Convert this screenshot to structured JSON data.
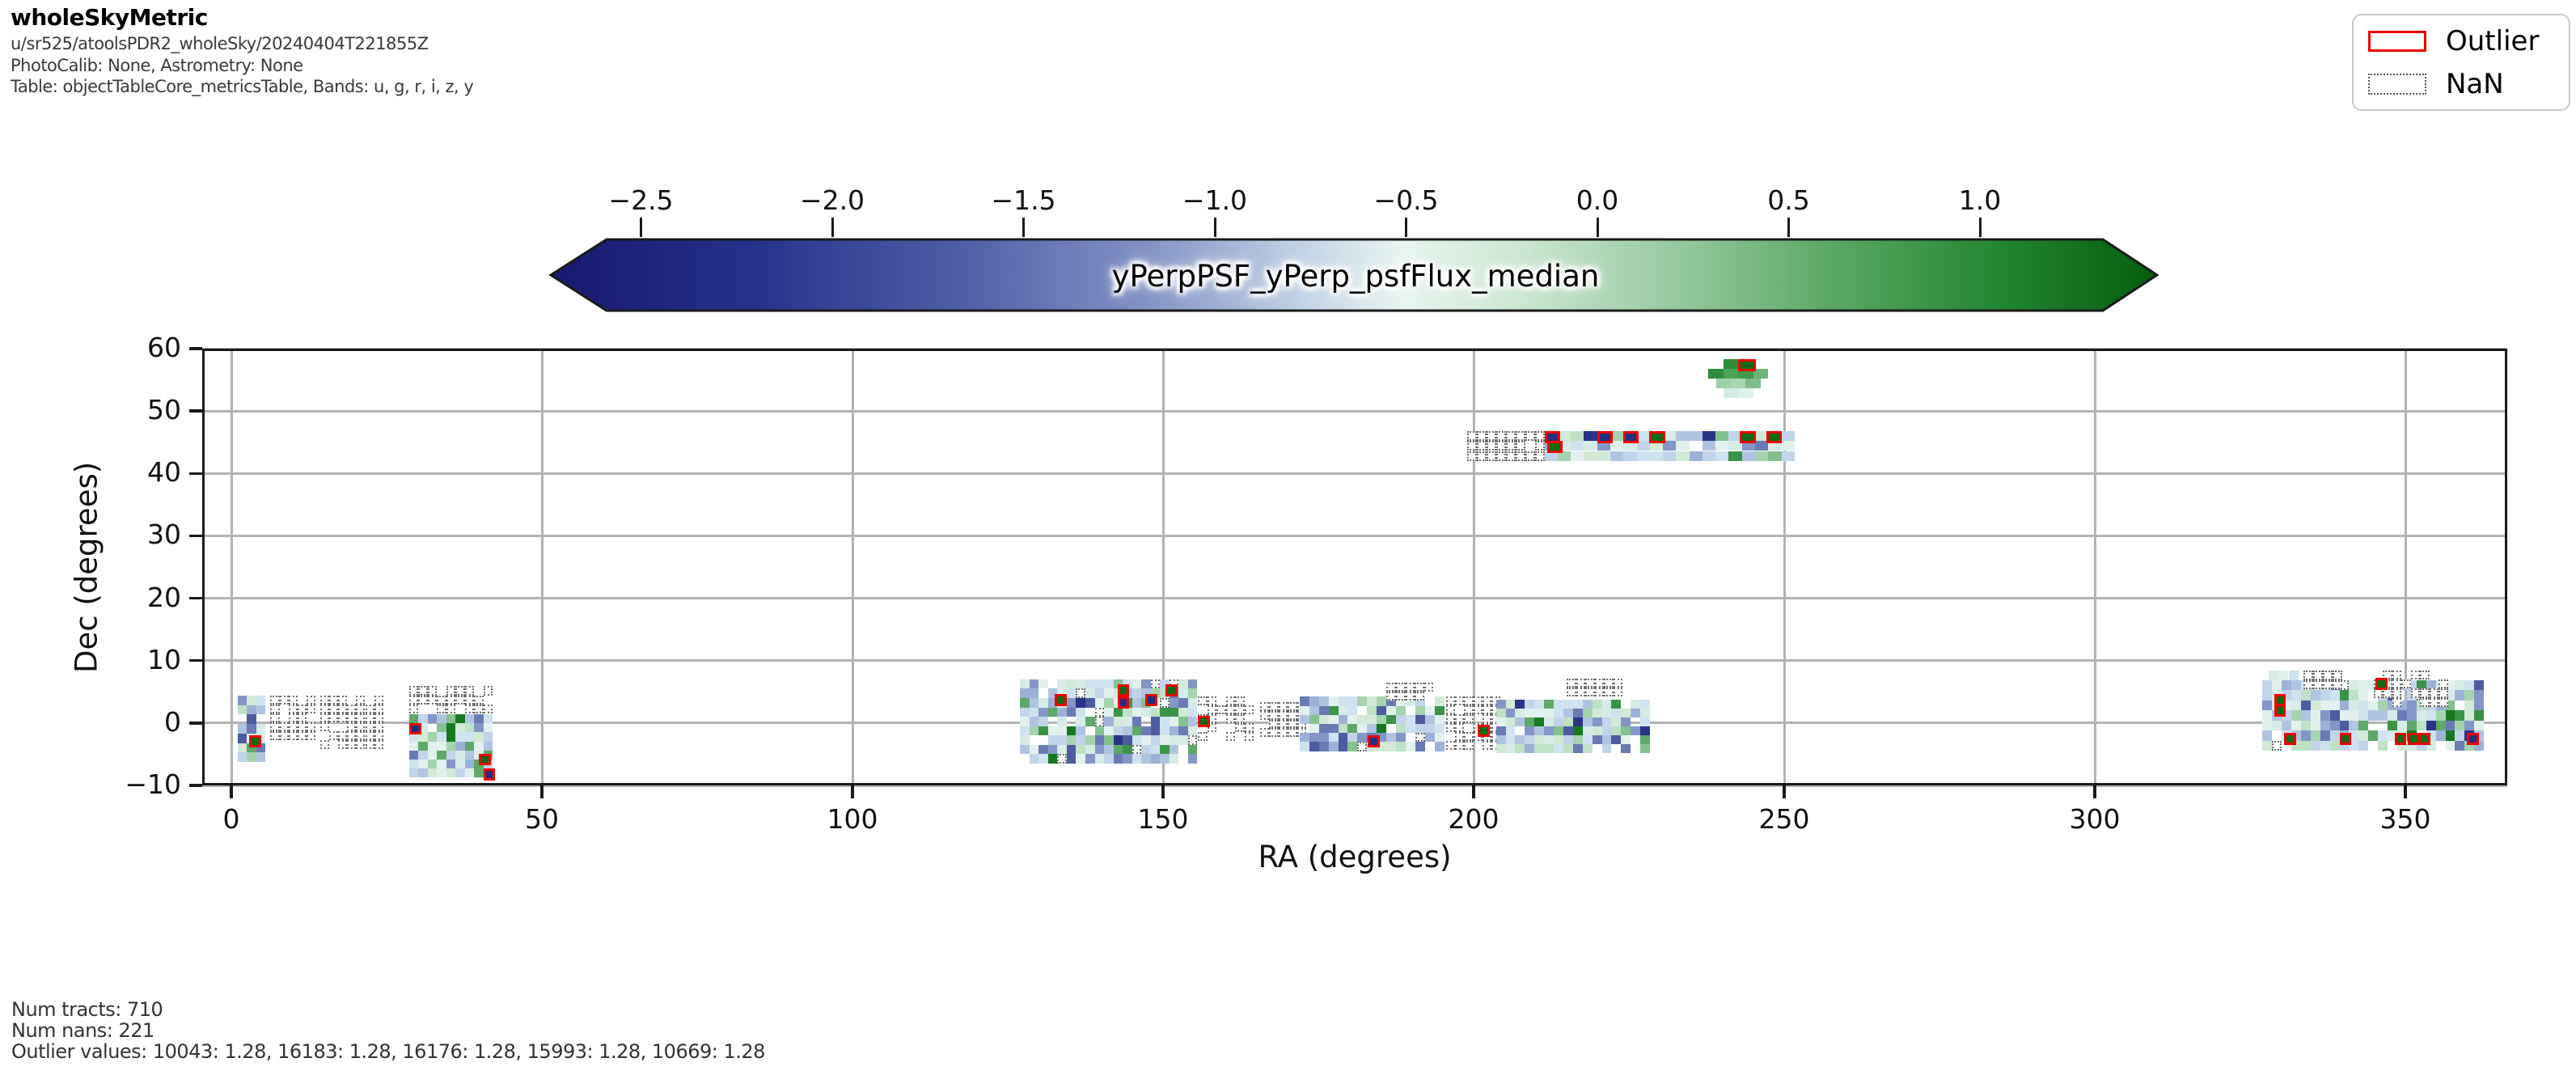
{
  "header": {
    "title": "wholeSkyMetric",
    "run": "u/sr525/atoolsPDR2_wholeSky/20240404T221855Z",
    "calib": "PhotoCalib: None, Astrometry: None",
    "table": "Table: objectTableCore_metricsTable, Bands: u, g, r, i, z, y"
  },
  "legend": {
    "outlier_label": "Outlier",
    "nan_label": "NaN",
    "outlier_color": "#f00000",
    "nan_border_color": "#555555"
  },
  "footer": {
    "line1": "Num tracts: 710",
    "line2": "Num nans: 221",
    "line3": "Outlier values: 10043: 1.28, 16183: 1.28, 16176: 1.28, 15993: 1.28, 10669: 1.28"
  },
  "chart_data": {
    "type": "heatmap",
    "title": "yPerpPSF_yPerp_psfFlux_median",
    "xlabel": "RA (degrees)",
    "ylabel": "Dec (degrees)",
    "xlim": [
      -4.7,
      366.4
    ],
    "ylim": [
      -10,
      60
    ],
    "grid": true,
    "num_tracts": 710,
    "num_nans": 221,
    "outlier_values": {
      "10043": 1.28,
      "16183": 1.28,
      "16176": 1.28,
      "15993": 1.28,
      "10669": 1.28
    },
    "axes": {
      "xticks": [
        {
          "v": 0,
          "label": "0"
        },
        {
          "v": 50,
          "label": "50"
        },
        {
          "v": 100,
          "label": "100"
        },
        {
          "v": 150,
          "label": "150"
        },
        {
          "v": 200,
          "label": "200"
        },
        {
          "v": 250,
          "label": "250"
        },
        {
          "v": 300,
          "label": "300"
        },
        {
          "v": 350,
          "label": "350"
        }
      ],
      "yticks": [
        {
          "v": 60,
          "label": "60"
        },
        {
          "v": 50,
          "label": "50"
        },
        {
          "v": 40,
          "label": "40"
        },
        {
          "v": 30,
          "label": "30"
        },
        {
          "v": 20,
          "label": "20"
        },
        {
          "v": 10,
          "label": "10"
        },
        {
          "v": 0,
          "label": "0"
        },
        {
          "v": -10,
          "label": "−10"
        }
      ]
    },
    "colorbar": {
      "label": "yPerpPSF_yPerp_psfFlux_median",
      "vmin": -2.6,
      "vmax": 1.33,
      "ticks": [
        {
          "v": -2.5,
          "label": "−2.5"
        },
        {
          "v": -2.0,
          "label": "−2.0"
        },
        {
          "v": -1.5,
          "label": "−1.5"
        },
        {
          "v": -1.0,
          "label": "−1.0"
        },
        {
          "v": -0.5,
          "label": "−0.5"
        },
        {
          "v": 0.0,
          "label": "0.0"
        },
        {
          "v": 0.5,
          "label": "0.5"
        },
        {
          "v": 1.0,
          "label": "1.0"
        }
      ],
      "gradient": [
        [
          0.0,
          "#191970"
        ],
        [
          0.12,
          "#24308a"
        ],
        [
          0.25,
          "#4d5ca6"
        ],
        [
          0.37,
          "#8292c5"
        ],
        [
          0.47,
          "#c3d4e6"
        ],
        [
          0.53,
          "#e9f5f1"
        ],
        [
          0.6,
          "#cde8d3"
        ],
        [
          0.7,
          "#97c9a0"
        ],
        [
          0.8,
          "#59a763"
        ],
        [
          0.9,
          "#248632"
        ],
        [
          1.0,
          "#045d0d"
        ]
      ]
    },
    "palette": [
      [
        "#e3f1ee",
        9
      ],
      [
        "#d7ebe7",
        9
      ],
      [
        "#cfe2ef",
        8
      ],
      [
        "#c2d4e9",
        9
      ],
      [
        "#b0c4e2",
        8
      ],
      [
        "#9db1d7",
        6
      ],
      [
        "#8496c8",
        5
      ],
      [
        "#6a7ab5",
        4
      ],
      [
        "#4d5ba0",
        2
      ],
      [
        "#2a3486",
        2
      ],
      [
        "#d2ead6",
        7
      ],
      [
        "#bfe1c6",
        6
      ],
      [
        "#a5d3ae",
        5
      ],
      [
        "#85c190",
        4
      ],
      [
        "#5ea86a",
        3
      ],
      [
        "#3b9348",
        2
      ],
      [
        "#177821",
        2
      ]
    ],
    "outlier_fill": {
      "green": "#0e6b16",
      "navy": "#232e7e"
    },
    "clusters": [
      {
        "type": "cells",
        "ra": 1.0,
        "dec": 4.4,
        "cols": 3,
        "rows": 7,
        "cw": 1.5,
        "ch": 1.52,
        "seed": 101,
        "hole": 0.06
      },
      {
        "type": "nan",
        "ra": 6.3,
        "dec": 4.4,
        "cols": 5,
        "rows": 5,
        "cw": 1.45,
        "ch": 1.42,
        "seed": 102,
        "hole": 0.18
      },
      {
        "type": "nan",
        "ra": 14.3,
        "dec": 4.4,
        "cols": 7,
        "rows": 6,
        "cw": 1.45,
        "ch": 1.42,
        "seed": 103,
        "hole": 0.22
      },
      {
        "type": "nan",
        "ra": 28.6,
        "dec": 5.9,
        "cols": 9,
        "rows": 3,
        "cw": 1.5,
        "ch": 1.45,
        "seed": 104,
        "hole": 0.12
      },
      {
        "type": "cells",
        "ra": 28.6,
        "dec": 1.4,
        "cols": 9,
        "rows": 7,
        "cw": 1.5,
        "ch": 1.45,
        "seed": 105,
        "hole": 0.05
      },
      {
        "type": "cells",
        "ra": 127.0,
        "dec": 7.0,
        "cols": 19,
        "rows": 9,
        "cw": 1.5,
        "ch": 1.5,
        "seed": 106,
        "hole": 0.12,
        "nanp": 0.05
      },
      {
        "type": "nan",
        "ra": 155.6,
        "dec": 4.2,
        "cols": 6,
        "rows": 5,
        "cw": 1.5,
        "ch": 1.42,
        "seed": 107,
        "hole": 0.3
      },
      {
        "type": "nan",
        "ra": 165.6,
        "dec": 3.4,
        "cols": 5,
        "rows": 4,
        "cw": 1.5,
        "ch": 1.42,
        "seed": 108,
        "hole": 0.15
      },
      {
        "type": "cells",
        "ra": 172.0,
        "dec": 4.2,
        "cols": 15,
        "rows": 6,
        "cw": 1.55,
        "ch": 1.45,
        "seed": 109,
        "hole": 0.08,
        "nanp": 0.03
      },
      {
        "type": "nan",
        "ra": 186.0,
        "dec": 6.4,
        "cols": 5,
        "rows": 2,
        "cw": 1.5,
        "ch": 1.42,
        "seed": 110,
        "hole": 0.12
      },
      {
        "type": "nan",
        "ra": 195.6,
        "dec": 4.2,
        "cols": 6,
        "rows": 6,
        "cw": 1.45,
        "ch": 1.42,
        "seed": 111,
        "hole": 0.2
      },
      {
        "type": "cells",
        "ra": 203.6,
        "dec": 3.7,
        "cols": 16,
        "rows": 6,
        "cw": 1.55,
        "ch": 1.42,
        "seed": 112,
        "hole": 0.07
      },
      {
        "type": "nan",
        "ra": 215.0,
        "dec": 7.1,
        "cols": 6,
        "rows": 2,
        "cw": 1.5,
        "ch": 1.45,
        "seed": 113,
        "hole": 0.1
      },
      {
        "type": "nan",
        "ra": 199.0,
        "dec": 46.8,
        "cols": 8,
        "rows": 3,
        "cw": 1.55,
        "ch": 1.6,
        "seed": 114,
        "hole": 0.06
      },
      {
        "type": "cells",
        "ra": 211.4,
        "dec": 46.8,
        "cols": 19,
        "rows": 3,
        "cw": 2.12,
        "ch": 1.6,
        "seed": 115,
        "hole": 0.03
      },
      {
        "type": "explicit",
        "cw": 2.4,
        "ch": 1.55,
        "cells": [
          {
            "ra": 240.2,
            "dec": 58.3,
            "c": "#2f8c3c"
          },
          {
            "ra": 237.8,
            "dec": 56.75,
            "c": "#2f8c3c"
          },
          {
            "ra": 240.2,
            "dec": 56.75,
            "c": "#4ba455"
          },
          {
            "ra": 242.6,
            "dec": 56.75,
            "c": "#3f9a4e"
          },
          {
            "ra": 245.0,
            "dec": 56.75,
            "c": "#6cb378"
          },
          {
            "ra": 239.0,
            "dec": 55.2,
            "c": "#9ed0a8"
          },
          {
            "ra": 241.4,
            "dec": 55.2,
            "c": "#a8d6b1"
          },
          {
            "ra": 243.8,
            "dec": 55.2,
            "c": "#7dbd89"
          },
          {
            "ra": 240.2,
            "dec": 53.65,
            "c": "#d3ece6"
          },
          {
            "ra": 242.6,
            "dec": 53.65,
            "c": "#def1ec"
          }
        ]
      },
      {
        "type": "cells",
        "ra": 327.0,
        "dec": 6.9,
        "cols": 23,
        "rows": 7,
        "cw": 1.55,
        "ch": 1.62,
        "seed": 116,
        "hole": 0.07,
        "nanp": 0.02
      },
      {
        "type": "explicit",
        "cw": 1.55,
        "ch": 1.55,
        "cells": [
          {
            "ra": 328.0,
            "dec": 8.4,
            "c": "#d7ebe7"
          },
          {
            "ra": 329.6,
            "dec": 8.4,
            "c": "#e3f1ee"
          },
          {
            "ra": 331.2,
            "dec": 8.4,
            "c": "#cfe2ef"
          }
        ]
      },
      {
        "type": "nan",
        "ra": 333.6,
        "dec": 8.4,
        "cols": 4,
        "rows": 2,
        "cw": 1.55,
        "ch": 1.5,
        "seed": 117,
        "hole": 0.1
      },
      {
        "type": "nan",
        "ra": 344.9,
        "dec": 8.4,
        "cols": 8,
        "rows": 4,
        "cw": 1.5,
        "ch": 1.45,
        "seed": 118,
        "hole": 0.18
      }
    ],
    "outlier_cells": [
      {
        "ra": 2.9,
        "dec": -2.0,
        "c": "green"
      },
      {
        "ra": 28.7,
        "dec": 0.0,
        "c": "navy"
      },
      {
        "ra": 39.9,
        "dec": -4.9,
        "c": "green"
      },
      {
        "ra": 40.6,
        "dec": -7.3,
        "c": "navy"
      },
      {
        "ra": 132.6,
        "dec": 4.6,
        "c": "green"
      },
      {
        "ra": 142.7,
        "dec": 6.2,
        "c": "green"
      },
      {
        "ra": 142.7,
        "dec": 4.2,
        "c": "navy"
      },
      {
        "ra": 147.2,
        "dec": 4.6,
        "c": "navy"
      },
      {
        "ra": 150.4,
        "dec": 6.2,
        "c": "green"
      },
      {
        "ra": 155.6,
        "dec": 1.2,
        "c": "green"
      },
      {
        "ra": 183.0,
        "dec": -2.0,
        "c": "navy"
      },
      {
        "ra": 200.7,
        "dec": -0.3,
        "c": "green"
      },
      {
        "ra": 211.4,
        "dec": 46.8,
        "c": "navy",
        "cw": 2.12,
        "ch": 1.6
      },
      {
        "ra": 211.8,
        "dec": 45.2,
        "c": "green",
        "cw": 2.12,
        "ch": 1.6
      },
      {
        "ra": 219.9,
        "dec": 46.8,
        "c": "navy",
        "cw": 2.12,
        "ch": 1.6
      },
      {
        "ra": 224.1,
        "dec": 46.8,
        "c": "navy",
        "cw": 2.12,
        "ch": 1.6
      },
      {
        "ra": 228.3,
        "dec": 46.8,
        "c": "green",
        "cw": 2.12,
        "ch": 1.6
      },
      {
        "ra": 242.9,
        "dec": 46.8,
        "c": "green",
        "cw": 2.12,
        "ch": 1.6
      },
      {
        "ra": 247.1,
        "dec": 46.8,
        "c": "green",
        "cw": 2.12,
        "ch": 1.6
      },
      {
        "ra": 242.6,
        "dec": 58.3,
        "c": "green",
        "cw": 2.4,
        "ch": 1.55
      },
      {
        "ra": 328.9,
        "dec": 4.7,
        "c": "green",
        "ch": 1.62
      },
      {
        "ra": 328.9,
        "dec": 3.0,
        "c": "green",
        "ch": 1.62
      },
      {
        "ra": 330.5,
        "dec": -1.6,
        "c": "green"
      },
      {
        "ra": 339.4,
        "dec": -1.6,
        "c": "green"
      },
      {
        "ra": 345.2,
        "dec": 7.2,
        "c": "green"
      },
      {
        "ra": 348.3,
        "dec": -1.6,
        "c": "green"
      },
      {
        "ra": 350.4,
        "dec": -1.6,
        "c": "green"
      },
      {
        "ra": 352.1,
        "dec": -1.6,
        "c": "green"
      },
      {
        "ra": 359.9,
        "dec": -1.6,
        "c": "navy"
      }
    ]
  }
}
